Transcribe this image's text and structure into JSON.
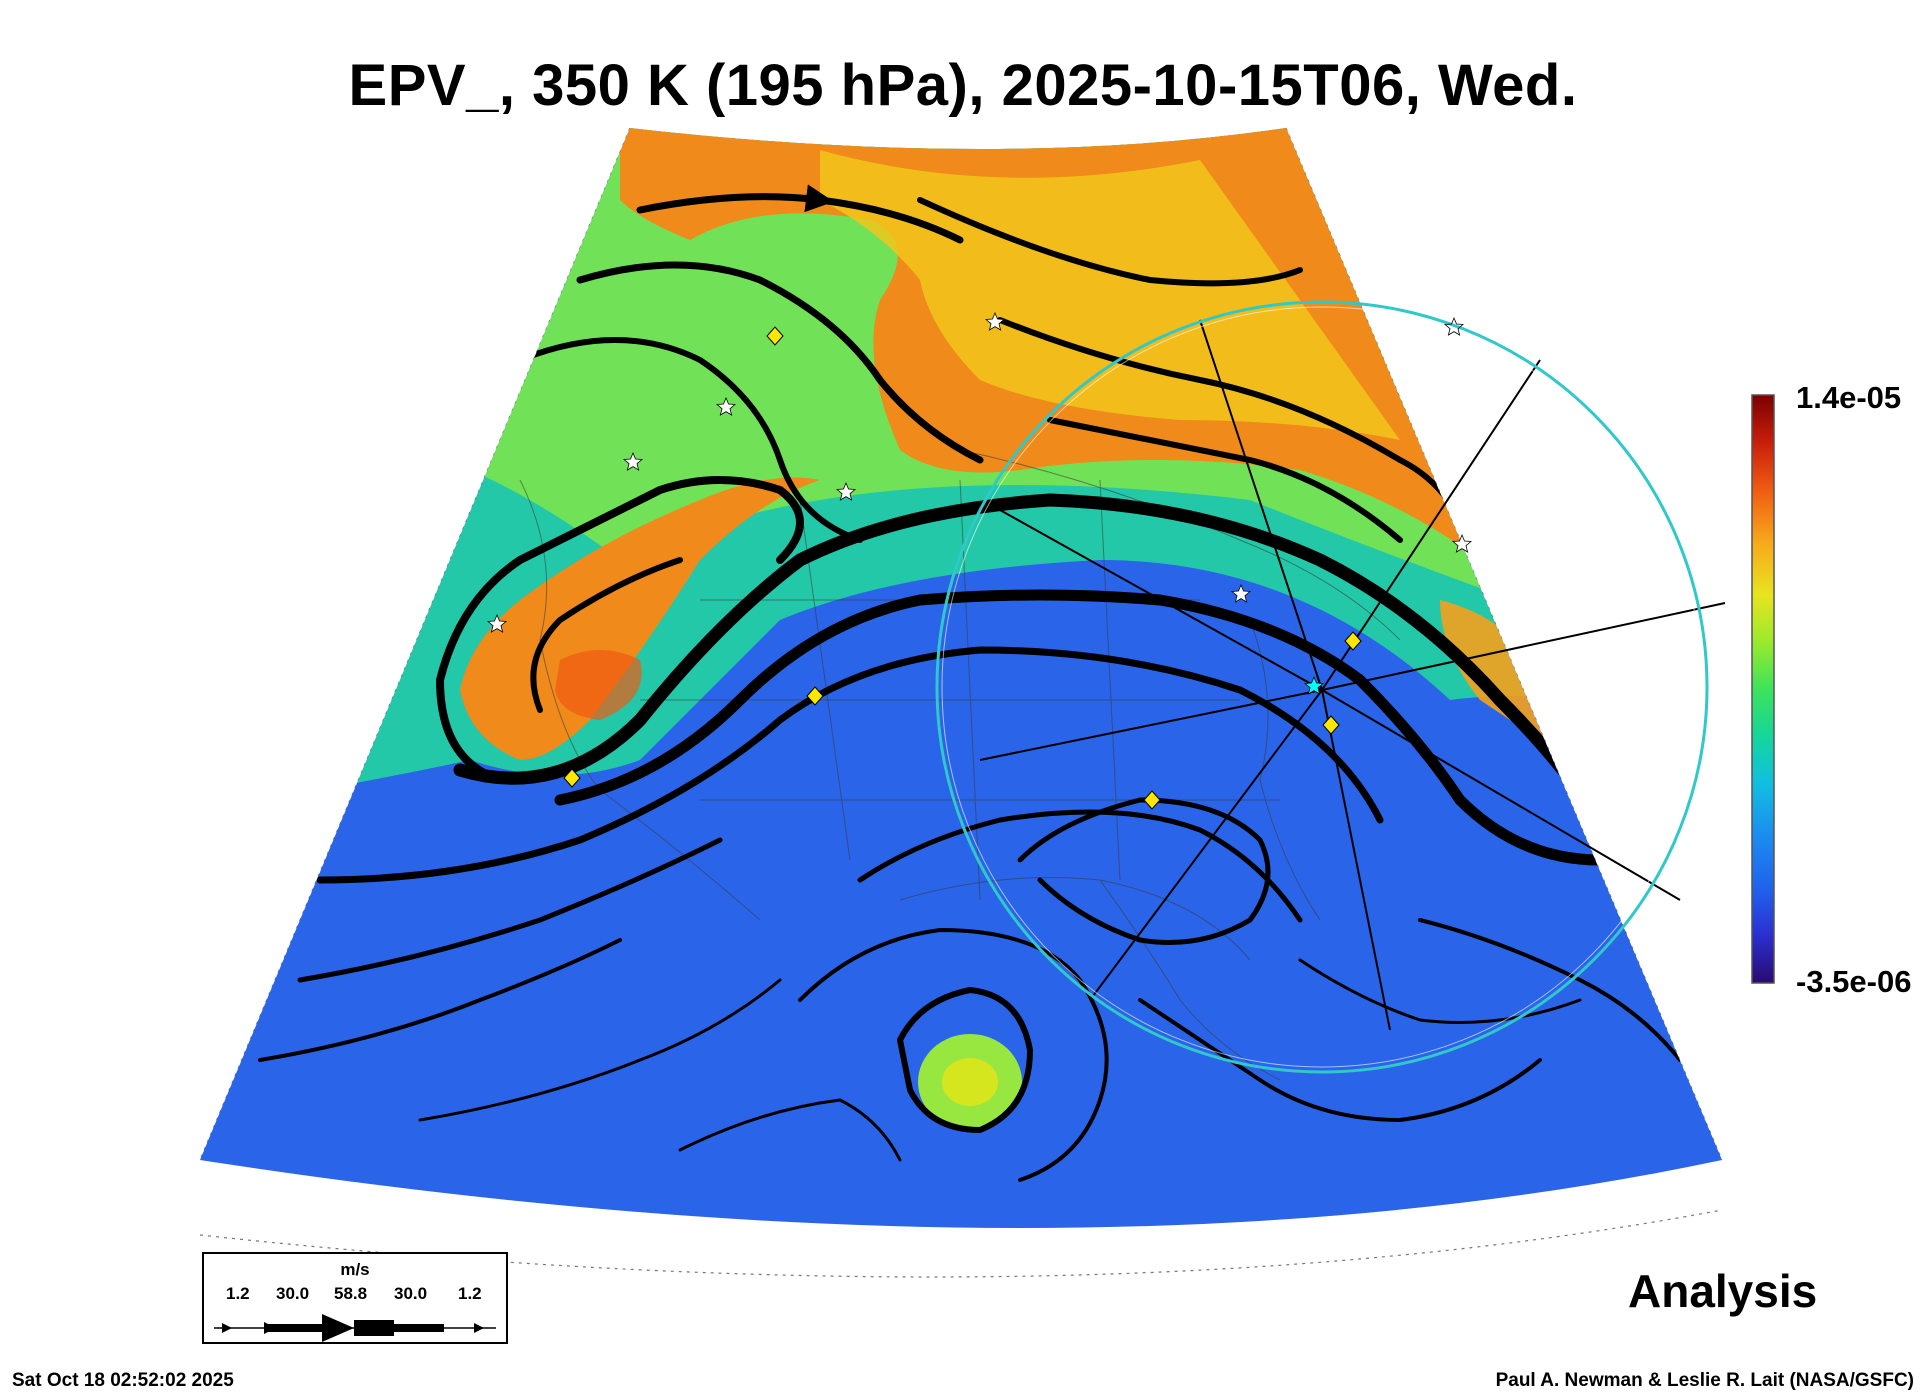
{
  "title": "EPV_, 350 K (195 hPa), 2025-10-15T06, Wed.",
  "colorbar": {
    "max_label": "1.4e-05",
    "min_label": "-3.5e-06",
    "colors": [
      "#2a0a6e",
      "#2b2fd0",
      "#1f62ee",
      "#1c8cf0",
      "#10bfe0",
      "#15d69a",
      "#3de35a",
      "#9aea2c",
      "#e8e41e",
      "#f7a81c",
      "#f05a12",
      "#c81e0a",
      "#7a0000"
    ]
  },
  "legend": {
    "unit": "m/s",
    "values": [
      "1.2",
      "30.0",
      "58.8",
      "30.0",
      "1.2"
    ]
  },
  "analysis_label": "Analysis",
  "footer": {
    "timestamp": "Sat Oct 18 02:52:02 2025",
    "credit": "Paul A. Newman & Leslie R. Lait (NASA/GSFC)"
  },
  "map_colors": {
    "low_epv": "#2a64e8",
    "mid_epv": "#22c8a8",
    "high_epv": "#f08a1a",
    "circle": "#30c8c8",
    "streamline": "#000000",
    "marker_diamond": "#ffe600",
    "marker_star": "#ffffff"
  }
}
